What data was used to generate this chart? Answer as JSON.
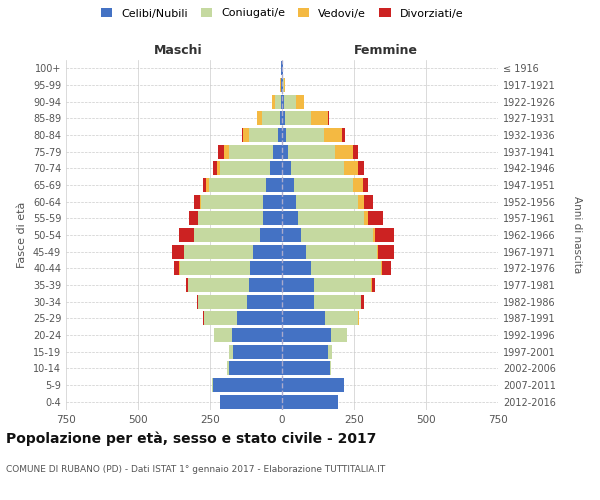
{
  "age_groups": [
    "0-4",
    "5-9",
    "10-14",
    "15-19",
    "20-24",
    "25-29",
    "30-34",
    "35-39",
    "40-44",
    "45-49",
    "50-54",
    "55-59",
    "60-64",
    "65-69",
    "70-74",
    "75-79",
    "80-84",
    "85-89",
    "90-94",
    "95-99",
    "100+"
  ],
  "birth_years": [
    "2012-2016",
    "2007-2011",
    "2002-2006",
    "1997-2001",
    "1992-1996",
    "1987-1991",
    "1982-1986",
    "1977-1981",
    "1972-1976",
    "1967-1971",
    "1962-1966",
    "1957-1961",
    "1952-1956",
    "1947-1951",
    "1942-1946",
    "1937-1941",
    "1932-1936",
    "1927-1931",
    "1922-1926",
    "1917-1921",
    "≤ 1916"
  ],
  "male": {
    "celibe": [
      215,
      240,
      185,
      170,
      175,
      155,
      120,
      115,
      110,
      100,
      75,
      65,
      65,
      55,
      40,
      30,
      15,
      8,
      5,
      2,
      2
    ],
    "coniugato": [
      1,
      2,
      5,
      15,
      60,
      115,
      170,
      210,
      245,
      240,
      230,
      225,
      215,
      200,
      175,
      155,
      100,
      60,
      20,
      2,
      0
    ],
    "vedovo": [
      0,
      0,
      0,
      0,
      1,
      1,
      0,
      1,
      1,
      2,
      2,
      3,
      5,
      8,
      10,
      18,
      20,
      20,
      10,
      2,
      0
    ],
    "divorziato": [
      0,
      0,
      0,
      0,
      1,
      2,
      5,
      8,
      20,
      40,
      50,
      30,
      20,
      10,
      15,
      18,
      5,
      0,
      0,
      0,
      0
    ]
  },
  "female": {
    "nubile": [
      195,
      215,
      165,
      160,
      170,
      150,
      110,
      110,
      100,
      85,
      65,
      55,
      50,
      40,
      30,
      20,
      15,
      10,
      8,
      2,
      2
    ],
    "coniugata": [
      1,
      2,
      4,
      12,
      55,
      115,
      165,
      200,
      245,
      245,
      250,
      230,
      215,
      205,
      185,
      165,
      130,
      90,
      40,
      5,
      0
    ],
    "vedova": [
      0,
      0,
      0,
      0,
      0,
      1,
      1,
      2,
      3,
      5,
      8,
      15,
      20,
      35,
      50,
      60,
      65,
      60,
      30,
      5,
      0
    ],
    "divorziata": [
      0,
      0,
      0,
      0,
      1,
      3,
      8,
      10,
      30,
      55,
      65,
      50,
      30,
      20,
      20,
      20,
      8,
      2,
      0,
      0,
      0
    ]
  },
  "colors": {
    "celibe": "#4472C4",
    "coniugato": "#c5d9a0",
    "vedovo": "#F4B942",
    "divorziato": "#CC2222"
  },
  "xlim": 750,
  "title": "Popolazione per età, sesso e stato civile - 2017",
  "subtitle": "COMUNE DI RUBANO (PD) - Dati ISTAT 1° gennaio 2017 - Elaborazione TUTTITALIA.IT",
  "ylabel": "Fasce di età",
  "ylabel_right": "Anni di nascita",
  "legend_labels": [
    "Celibi/Nubili",
    "Coniugati/e",
    "Vedovi/e",
    "Divorziati/e"
  ],
  "maschi_label": "Maschi",
  "femmine_label": "Femmine",
  "background_color": "#ffffff",
  "grid_color": "#cccccc"
}
